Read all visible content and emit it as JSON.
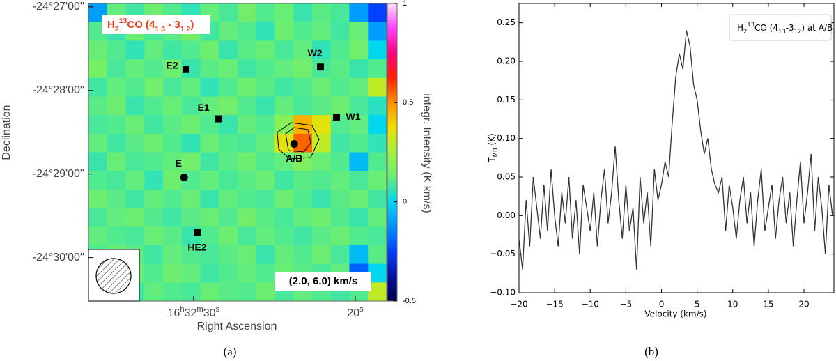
{
  "chart_data": [
    {
      "type": "heatmap",
      "title": [
        {
          "text": "H"
        },
        {
          "text": "2",
          "script": "sub"
        },
        {
          "text": "13",
          "script": "super"
        },
        {
          "text": "CO (4"
        },
        {
          "text": "1 3",
          "script": "sub"
        },
        {
          "text": " - 3"
        },
        {
          "text": "1 2",
          "script": "sub"
        },
        {
          "text": ")"
        }
      ],
      "annotation": "(2.0, 6.0) km/s",
      "xlabel": "Right Ascension",
      "ylabel": "Declination",
      "panel_label": "(a)",
      "xlim": [
        36.5,
        18.06
      ],
      "xticks": [
        {
          "value": 30,
          "label": "16h32m30s"
        },
        {
          "value": 20,
          "label": "20s"
        }
      ],
      "ylim": [
        26.96,
        30.52
      ],
      "yticks": [
        {
          "value": 27,
          "label": "-24°27'00''"
        },
        {
          "value": 28,
          "label": "-24°28'00''"
        },
        {
          "value": 29,
          "label": "-24°29'00''"
        },
        {
          "value": 30,
          "label": "-24°30'00''"
        }
      ],
      "zlim": [
        -0.5,
        1
      ],
      "zticks": [
        -0.5,
        0,
        0.5,
        1
      ],
      "zlabel": "integr. Intensity (K km/s)",
      "colormap": [
        "#000040",
        "#0010a0",
        "#0040ff",
        "#0090ff",
        "#00d8f0",
        "#66ee77",
        "#a0f040",
        "#f0e000",
        "#ff9000",
        "#ff2000",
        "#ff0080",
        "#ff40ff",
        "#ffe0ff"
      ],
      "z": [
        [
          -0.1,
          0.12,
          0.08,
          0.14,
          0.1,
          0.06,
          0.12,
          0.09,
          0.15,
          0.1,
          0.13,
          0.07,
          0.11,
          0.09,
          -0.1,
          -0.25
        ],
        [
          0.1,
          0.07,
          0.13,
          0.09,
          0.11,
          0.15,
          0.08,
          0.12,
          0.1,
          0.06,
          0.14,
          0.1,
          0.12,
          0.08,
          0.13,
          -0.1
        ],
        [
          0.13,
          0.1,
          0.06,
          0.12,
          0.08,
          0.1,
          0.14,
          0.07,
          0.11,
          0.13,
          0.09,
          0.12,
          0.06,
          0.1,
          0.15,
          0.0
        ],
        [
          0.16,
          0.09,
          0.12,
          0.1,
          0.14,
          0.07,
          0.11,
          0.13,
          0.08,
          0.1,
          0.12,
          0.15,
          0.09,
          0.11,
          0.07,
          0.1
        ],
        [
          0.08,
          0.12,
          0.1,
          0.15,
          0.09,
          0.12,
          0.06,
          0.1,
          0.14,
          0.11,
          0.08,
          0.1,
          0.13,
          0.1,
          0.12,
          0.3
        ],
        [
          0.11,
          0.14,
          0.07,
          0.1,
          0.13,
          0.09,
          0.12,
          0.15,
          0.1,
          0.07,
          0.12,
          0.09,
          0.11,
          0.14,
          0.09,
          0.05
        ],
        [
          0.09,
          0.1,
          0.13,
          0.08,
          0.11,
          0.14,
          0.1,
          0.07,
          0.12,
          0.1,
          0.2,
          0.45,
          0.35,
          0.1,
          0.12,
          0.0
        ],
        [
          0.12,
          0.08,
          0.11,
          0.14,
          0.1,
          0.06,
          0.13,
          0.1,
          0.09,
          0.12,
          0.35,
          0.55,
          0.3,
          0.08,
          0.1,
          0.06
        ],
        [
          0.07,
          0.13,
          0.09,
          0.1,
          0.12,
          0.15,
          0.08,
          0.11,
          0.14,
          0.1,
          0.12,
          0.18,
          0.13,
          0.1,
          -0.05,
          0.1
        ],
        [
          0.1,
          0.09,
          0.12,
          0.06,
          0.14,
          0.1,
          0.12,
          0.09,
          0.11,
          0.13,
          0.08,
          0.11,
          0.1,
          0.12,
          0.09,
          0.13
        ],
        [
          0.14,
          0.11,
          0.08,
          0.12,
          0.1,
          0.13,
          0.07,
          0.12,
          0.1,
          0.09,
          0.14,
          0.1,
          0.07,
          0.11,
          0.13,
          0.08
        ],
        [
          0.09,
          0.12,
          0.14,
          0.1,
          0.08,
          0.11,
          0.13,
          0.1,
          0.15,
          0.11,
          0.09,
          0.12,
          0.14,
          0.1,
          0.07,
          0.12
        ],
        [
          0.12,
          0.1,
          0.09,
          0.13,
          0.11,
          0.07,
          0.1,
          0.14,
          0.09,
          0.12,
          0.1,
          0.08,
          0.11,
          0.13,
          0.1,
          0.09
        ],
        [
          0.1,
          0.13,
          0.11,
          0.08,
          0.12,
          0.1,
          0.09,
          0.11,
          0.13,
          0.07,
          0.12,
          0.1,
          0.14,
          0.09,
          -0.05,
          0.11
        ],
        [
          0.11,
          0.09,
          0.12,
          0.1,
          0.14,
          0.12,
          0.08,
          0.1,
          0.12,
          0.1,
          0.13,
          0.11,
          0.09,
          0.12,
          -0.2,
          0.0
        ],
        [
          0.13,
          0.1,
          0.08,
          0.12,
          0.1,
          0.09,
          0.13,
          0.11,
          0.1,
          0.14,
          0.09,
          0.12,
          0.1,
          0.08,
          0.1,
          0.3
        ]
      ],
      "sources": [
        {
          "name": "E2",
          "x": 30.47,
          "y": 27.75,
          "marker": "square",
          "label_side": "left"
        },
        {
          "name": "W2",
          "x": 22.15,
          "y": 27.72,
          "marker": "square",
          "label_side": "top"
        },
        {
          "name": "E1",
          "x": 28.44,
          "y": 28.34,
          "marker": "square",
          "label_side": "topleft"
        },
        {
          "name": "W1",
          "x": 21.16,
          "y": 28.32,
          "marker": "square",
          "label_side": "right"
        },
        {
          "name": "A/B",
          "x": 23.78,
          "y": 28.64,
          "marker": "circle",
          "label_side": "bottom"
        },
        {
          "name": "E",
          "x": 30.59,
          "y": 29.04,
          "marker": "circle",
          "label_side": "top"
        },
        {
          "name": "HE2",
          "x": 29.78,
          "y": 29.7,
          "marker": "square",
          "label_side": "bottom"
        }
      ]
    },
    {
      "type": "line",
      "legend": [
        {
          "text": "H"
        },
        {
          "text": "2",
          "script": "sub"
        },
        {
          "text": "13",
          "script": "super"
        },
        {
          "text": "CO (4"
        },
        {
          "text": "13",
          "script": "sub"
        },
        {
          "text": "-3"
        },
        {
          "text": "12",
          "script": "sub"
        },
        {
          "text": ") at A/B"
        }
      ],
      "xlabel": "Velocity (km/s)",
      "ylabel": [
        {
          "text": "T"
        },
        {
          "text": "MB",
          "script": "sub"
        },
        {
          "text": " (K)"
        }
      ],
      "panel_label": "(b)",
      "color": "#333333",
      "xlim": [
        -20,
        24.2
      ],
      "xticks": [
        {
          "value": -20,
          "label": "−20"
        },
        {
          "value": -15,
          "label": "−15"
        },
        {
          "value": -10,
          "label": "−10"
        },
        {
          "value": -5,
          "label": "−5"
        },
        0,
        5,
        10,
        15,
        20
      ],
      "ylim": [
        -0.1,
        0.275
      ],
      "yticks": [
        {
          "value": -0.1,
          "label": "−0.10"
        },
        {
          "value": -0.05,
          "label": "−0.05"
        },
        {
          "value": 0,
          "label": "0.00"
        },
        0.05,
        {
          "value": 0.1,
          "label": "0.10"
        },
        0.15,
        {
          "value": 0.2,
          "label": "0.20"
        },
        0.25
      ],
      "x": [
        -20,
        -19.5,
        -19,
        -18.5,
        -18,
        -17.5,
        -17,
        -16.5,
        -16,
        -15.5,
        -15,
        -14.5,
        -14,
        -13.5,
        -13,
        -12.5,
        -12,
        -11.5,
        -11,
        -10.5,
        -10,
        -9.5,
        -9,
        -8.5,
        -8,
        -7.5,
        -7,
        -6.5,
        -6,
        -5.5,
        -5,
        -4.5,
        -4,
        -3.5,
        -3,
        -2.5,
        -2,
        -1.5,
        -1,
        -0.5,
        0,
        0.5,
        1,
        1.5,
        2,
        2.5,
        3,
        3.5,
        4,
        4.5,
        5,
        5.5,
        6,
        6.5,
        7,
        7.5,
        8,
        8.5,
        9,
        9.5,
        10,
        10.5,
        11,
        11.5,
        12,
        12.5,
        13,
        13.5,
        14,
        14.5,
        15,
        15.5,
        16,
        16.5,
        17,
        17.5,
        18,
        18.5,
        19,
        19.5,
        20,
        20.5,
        21,
        21.5,
        22,
        22.5,
        23,
        23.5,
        24
      ],
      "values": [
        -0.03,
        -0.07,
        0.02,
        -0.04,
        0.05,
        0.01,
        -0.03,
        0.04,
        -0.02,
        0.06,
        0.0,
        -0.04,
        0.03,
        -0.01,
        0.05,
        -0.03,
        0.02,
        -0.05,
        0.04,
        0.01,
        -0.02,
        0.03,
        -0.04,
        0.02,
        0.06,
        -0.01,
        0.03,
        0.09,
        0.02,
        -0.03,
        0.04,
        -0.02,
        0.01,
        -0.07,
        0.05,
        -0.01,
        0.03,
        -0.04,
        0.06,
        0.02,
        0.04,
        0.07,
        0.05,
        0.12,
        0.18,
        0.21,
        0.19,
        0.24,
        0.22,
        0.17,
        0.15,
        0.11,
        0.08,
        0.1,
        0.06,
        0.04,
        0.03,
        0.05,
        -0.02,
        0.04,
        0.01,
        -0.03,
        0.02,
        0.05,
        -0.01,
        0.03,
        -0.04,
        0.02,
        0.06,
        -0.02,
        0.01,
        0.04,
        -0.03,
        0.02,
        0.05,
        -0.01,
        0.03,
        -0.04,
        0.02,
        0.07,
        -0.01,
        0.03,
        0.08,
        -0.02,
        0.05,
        0.01,
        -0.05,
        0.04,
        0.0
      ]
    }
  ]
}
